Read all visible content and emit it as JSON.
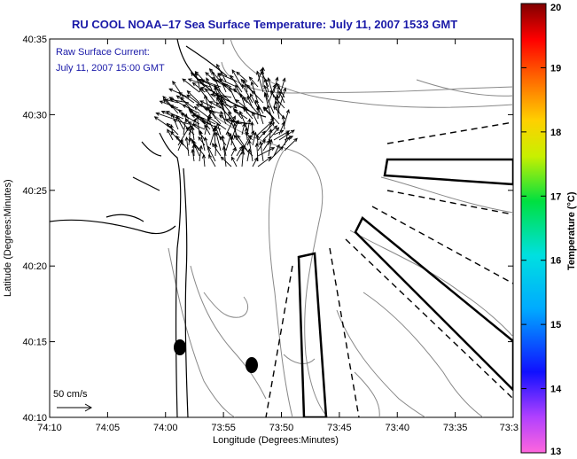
{
  "title": "RU COOL  NOAA–17  Sea Surface Temperature:  July 11, 2007 1533 GMT",
  "inset": {
    "line1": "Raw Surface Current:",
    "line2": "July 11, 2007 15:00 GMT"
  },
  "scale_label": "50 cm/s",
  "axes": {
    "xlabel": "Longitude (Degrees:Minutes)",
    "ylabel": "Latitude (Degrees:Minutes)",
    "x_ticks": [
      "74:10",
      "74:05",
      "74:00",
      "73:55",
      "73:50",
      "73:45",
      "73:40",
      "73:35",
      "73:3"
    ],
    "y_ticks": [
      "40:35",
      "40:30",
      "40:25",
      "40:20",
      "40:15",
      "40:10"
    ]
  },
  "colorbar": {
    "label": "Temperature (°C)",
    "ticks": [
      "20",
      "19",
      "18",
      "17",
      "16",
      "15",
      "14",
      "13"
    ]
  },
  "colors": {
    "title": "#1a1aa8",
    "land": "#ffffff",
    "contour": "#888888",
    "coast": "#000000"
  },
  "map_data": {
    "lon_range_min": [
      -74.1667,
      -73.5
    ],
    "lat_range_min": [
      40.1667,
      40.5833
    ],
    "markers": [
      {
        "lon": -73.98,
        "lat": 40.245
      },
      {
        "lon": -73.87,
        "lat": 40.225
      }
    ]
  }
}
